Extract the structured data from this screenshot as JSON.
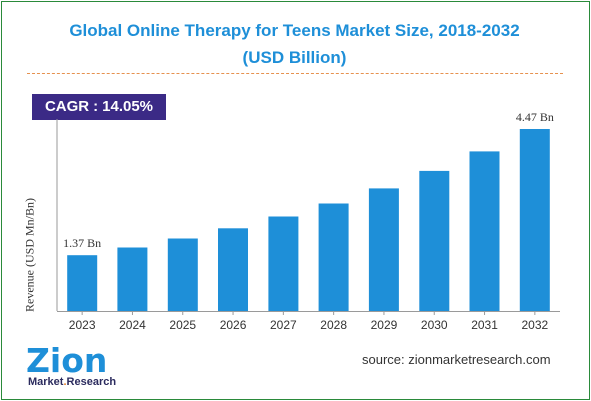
{
  "title_line1": "Global Online Therapy for Teens Market Size, 2018-2032",
  "title_line2": "(USD Billion)",
  "cagr": {
    "label": "CAGR",
    "separator": ":",
    "value": "14.05%"
  },
  "source": "source: zionmarketresearch.com",
  "logo": {
    "word": "Zion",
    "sub_left": "Market",
    "sub_dot": ".",
    "sub_right": "Research"
  },
  "colors": {
    "bar": "#1e8fd8",
    "title": "#1e8fd8",
    "cagr_bg": "#3b2a86",
    "divider": "#e6914f",
    "border": "#2a8a3a"
  },
  "chart_data": {
    "type": "bar",
    "title": "Global Online Therapy for Teens Market Size, 2018-2032 (USD Billion)",
    "xlabel": "",
    "ylabel": "Revenue (USD Mn/Bn)",
    "categories": [
      "2023",
      "2024",
      "2025",
      "2026",
      "2027",
      "2028",
      "2029",
      "2030",
      "2031",
      "2032"
    ],
    "values": [
      1.37,
      1.56,
      1.78,
      2.03,
      2.32,
      2.64,
      3.01,
      3.44,
      3.92,
      4.47
    ],
    "data_labels": {
      "2023": "1.37 Bn",
      "2032": "4.47 Bn"
    },
    "ylim": [
      0,
      4.47
    ],
    "grid": false
  }
}
